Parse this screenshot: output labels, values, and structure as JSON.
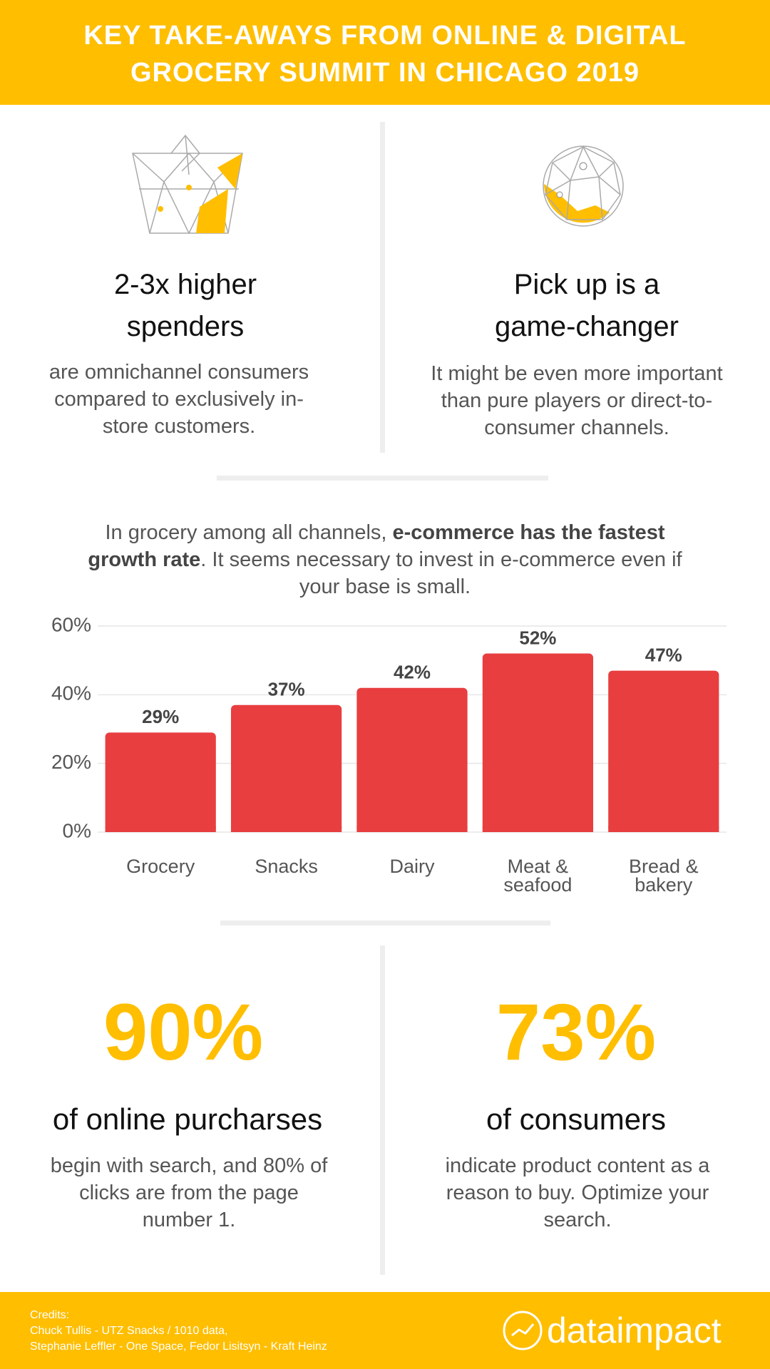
{
  "header": {
    "title": "KEY TAKE-AWAYS FROM ONLINE & DIGITAL GROCERY SUMMIT IN CHICAGO 2019"
  },
  "insights": [
    {
      "heading": "2-3x higher spenders",
      "text": "are omnichannel consumers compared to exclusively in-store customers."
    },
    {
      "heading": "Pick up is a game-changer",
      "text": "It might be even more important than pure players or direct-to-consumer channels."
    }
  ],
  "chart_intro": {
    "parts": [
      "In grocery among all channels, ",
      "e-commerce has the fastest growth rate",
      ". It seems necessary to invest in e-commerce even if your base is small."
    ]
  },
  "chart_data": {
    "type": "bar",
    "categories": [
      "Grocery",
      "Snacks",
      "Dairy",
      "Meat & seafood",
      "Bread & bakery"
    ],
    "values": [
      29,
      37,
      42,
      52,
      47
    ],
    "value_labels": [
      "29%",
      "37%",
      "42%",
      "52%",
      "47%"
    ],
    "color": "#e83e40",
    "ylim": [
      0,
      60
    ],
    "yticks": [
      {
        "value": 0,
        "label": "0%"
      },
      {
        "value": 20,
        "label": "20%"
      },
      {
        "value": 40,
        "label": "40%"
      },
      {
        "value": 60,
        "label": "60%"
      }
    ],
    "grid": true
  },
  "stats": [
    {
      "number": "90%",
      "heading": "of online purcharses",
      "text": "begin with search, and 80% of clicks are from the page number 1."
    },
    {
      "number": "73%",
      "heading": "of consumers",
      "text": "indicate product content as a reason to buy. Optimize your search."
    }
  ],
  "footer": {
    "credits": [
      "Credits:",
      "Chuck Tullis - UTZ Snacks / 1010 data,",
      "Stephanie Leffler - One Space, Fedor Lisitsyn - Kraft Heinz"
    ],
    "logo": "dataimpact"
  }
}
